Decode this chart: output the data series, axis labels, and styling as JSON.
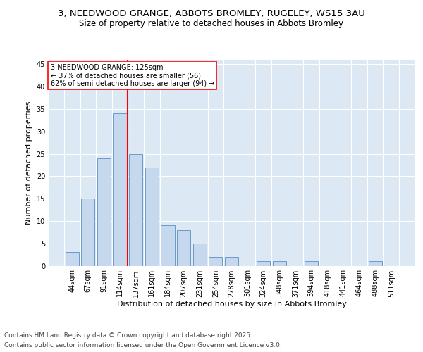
{
  "title_line1": "3, NEEDWOOD GRANGE, ABBOTS BROMLEY, RUGELEY, WS15 3AU",
  "title_line2": "Size of property relative to detached houses in Abbots Bromley",
  "xlabel": "Distribution of detached houses by size in Abbots Bromley",
  "ylabel": "Number of detached properties",
  "footer_line1": "Contains HM Land Registry data © Crown copyright and database right 2025.",
  "footer_line2": "Contains public sector information licensed under the Open Government Licence v3.0.",
  "bar_labels": [
    "44sqm",
    "67sqm",
    "91sqm",
    "114sqm",
    "137sqm",
    "161sqm",
    "184sqm",
    "207sqm",
    "231sqm",
    "254sqm",
    "278sqm",
    "301sqm",
    "324sqm",
    "348sqm",
    "371sqm",
    "394sqm",
    "418sqm",
    "441sqm",
    "464sqm",
    "488sqm",
    "511sqm"
  ],
  "bar_values": [
    3,
    15,
    24,
    34,
    25,
    22,
    9,
    8,
    5,
    2,
    2,
    0,
    1,
    1,
    0,
    1,
    0,
    0,
    0,
    1,
    0
  ],
  "bar_color": "#c5d8ed",
  "bar_edge_color": "#5a8fc2",
  "background_color": "#dce9f5",
  "grid_color": "#ffffff",
  "vline_x": 3.5,
  "vline_color": "red",
  "annotation_text": "3 NEEDWOOD GRANGE: 125sqm\n← 37% of detached houses are smaller (56)\n62% of semi-detached houses are larger (94) →",
  "annotation_box_edgecolor": "red",
  "annotation_box_facecolor": "white",
  "ylim": [
    0,
    46
  ],
  "yticks": [
    0,
    5,
    10,
    15,
    20,
    25,
    30,
    35,
    40,
    45
  ],
  "title_fontsize": 9.5,
  "subtitle_fontsize": 8.5,
  "axis_label_fontsize": 8,
  "tick_fontsize": 7,
  "footer_fontsize": 6.5,
  "annotation_fontsize": 7
}
